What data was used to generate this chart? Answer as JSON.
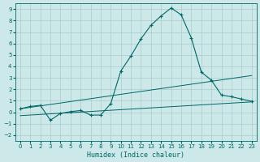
{
  "xlabel": "Humidex (Indice chaleur)",
  "background_color": "#cce8e8",
  "grid_color": "#aacccc",
  "line_color": "#006666",
  "xlim": [
    -0.5,
    23.5
  ],
  "ylim": [
    -2.5,
    9.5
  ],
  "xticks": [
    0,
    1,
    2,
    3,
    4,
    5,
    6,
    7,
    8,
    9,
    10,
    11,
    12,
    13,
    14,
    15,
    16,
    17,
    18,
    19,
    20,
    21,
    22,
    23
  ],
  "yticks": [
    -2,
    -1,
    0,
    1,
    2,
    3,
    4,
    5,
    6,
    7,
    8,
    9
  ],
  "series1_x": [
    0,
    1,
    2,
    3,
    4,
    5,
    6,
    7,
    8,
    9,
    10,
    11,
    12,
    13,
    14,
    15,
    16,
    17,
    18,
    19,
    20,
    21,
    22,
    23
  ],
  "series1_y": [
    0.3,
    0.5,
    0.6,
    -0.7,
    -0.1,
    0.05,
    0.15,
    -0.25,
    -0.25,
    0.75,
    3.6,
    4.9,
    6.4,
    7.6,
    8.4,
    9.1,
    8.5,
    6.5,
    3.5,
    2.8,
    1.5,
    1.35,
    1.15,
    0.95
  ],
  "series2_x": [
    0,
    23
  ],
  "series2_y": [
    0.3,
    3.2
  ],
  "series3_x": [
    0,
    23
  ],
  "series3_y": [
    -0.3,
    0.9
  ]
}
